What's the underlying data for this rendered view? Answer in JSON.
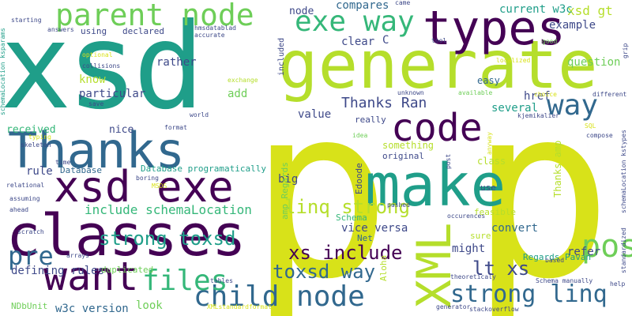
{
  "colors": {
    "background": "#ffffff",
    "teal": "#1f9e89",
    "lime": "#b5de2b",
    "green": "#6ece58",
    "blue": "#31688e",
    "navy": "#3e4989",
    "purple": "#482878",
    "dark_purple": "#440154",
    "yellow": "#d8e219",
    "aqua": "#26828e",
    "sea": "#35b779"
  },
  "words": {
    "xsd": "xsd",
    "p_main": "p",
    "p_right": "p",
    "generate": "generate",
    "thanks": "Thanks",
    "classes": "classes",
    "make": "make",
    "types": "types",
    "parent_node": "parent node",
    "code": "code",
    "xsd_exe": "xsd exe",
    "want": "want",
    "child_node": "child node",
    "exe_way": "exe way",
    "way": "way",
    "xml": "XML",
    "possible": "possible",
    "p_small": "p",
    "pre": "pre",
    "files": "files",
    "strong_linq": "strong linq",
    "linq_strong": "linq strong",
    "strong_toxsd": "strong toxsd",
    "xs_include": "xs include",
    "toxsd_way": "toxsd way",
    "lt_xs": "lt xs",
    "thanks_ran": "Thanks Ran",
    "include_schema": "include schemaLocation",
    "xsd_gt": "xsd gt",
    "node": "node",
    "compares": "compares",
    "current_w3c": "current w3c",
    "example": "example",
    "question": "question",
    "rather": "rather",
    "know": "know",
    "particular": "particular",
    "add": "add",
    "href": "href",
    "several": "several",
    "clear": "clear",
    "c": "C",
    "value": "value",
    "received": "received",
    "nice": "nice",
    "rule": "rule",
    "database": "Database",
    "database_prog": "Database programatically",
    "defining_rules": "defining rules",
    "duplicated": "duplicated",
    "w3c_version": "w3c version",
    "look": "look",
    "ndbunit": "NDbUnit",
    "vice_versa": "vice versa",
    "net": "Net",
    "might": "might",
    "convert": "convert",
    "regards_pavan": "Regards Pavan",
    "refer": "refer",
    "feasible": "feasible",
    "sure": "sure",
    "big": "big",
    "original": "original",
    "class": "class",
    "something": "something",
    "really": "really",
    "easy": "easy",
    "use": "use",
    "using": "using",
    "declared": "declared",
    "answers": "answers",
    "starting": "starting",
    "optional": "optional",
    "collisions": "collisions",
    "save": "save",
    "hmsdatabladd": "hmsdatablad",
    "accurate": "accurate",
    "exchange": "exchange",
    "localized": "localized",
    "available": "available",
    "unknown": "unknown",
    "tool": "tool",
    "came": "came",
    "good": "good",
    "grip": "grip",
    "choice": "choice",
    "different": "different",
    "world": "world",
    "format": "format",
    "typing": "typing",
    "skeleton": "skeleton",
    "time": "time",
    "boring": "boring",
    "msds": "MSDS",
    "relational": "relational",
    "assuming": "assuming",
    "ahead": "ahead",
    "scratch": "scratch",
    "arrays": "arrays",
    "tables": "tables",
    "xmlstandard": "XMLstandardformat",
    "theoreticaly": "theoreticaly",
    "generator": "generator",
    "stackoverflow": "stackoverflow",
    "schema_manually": "Schema manually",
    "help": "help",
    "based": "based",
    "pushed": "pushed",
    "occurences": "occurences",
    "schema": "Schema",
    "edoode": "Edoode",
    "amp_regards": "amp Regards",
    "aloha": "Aloha",
    "thanks_amp": "Thanks amp",
    "idea": "idea",
    "post": "post",
    "anyway": "anyway",
    "sql": "SQL",
    "compose": "compose",
    "kjemikalier": "kjemikalier",
    "standardized": "standardized",
    "schemaloc_ksparams": "schemaLocation ksparams",
    "schemaloc_ksty": "schemaLocation kstypes",
    "included": "included"
  }
}
